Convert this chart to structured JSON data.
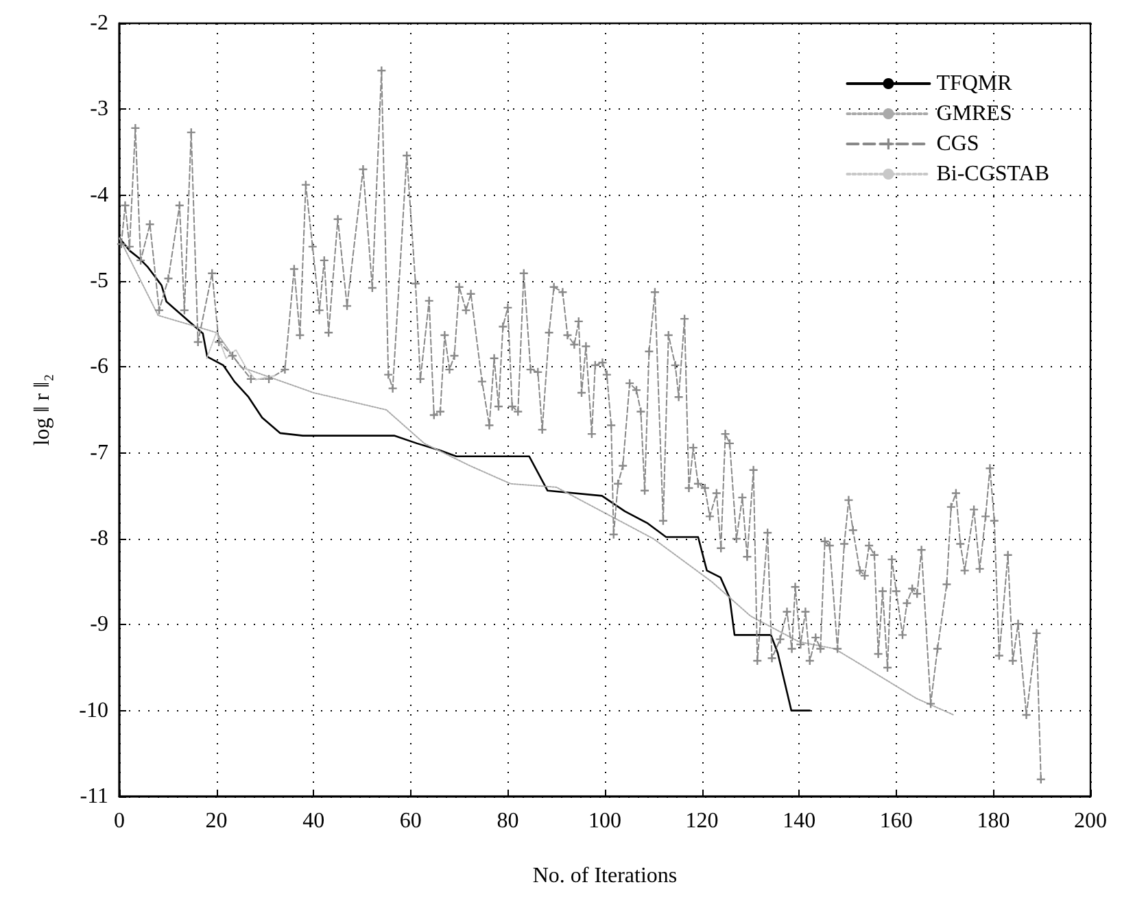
{
  "chart_data": {
    "type": "line",
    "xlabel": "No. of Iterations",
    "ylabel": "log ‖ r ‖₂",
    "xlim": [
      0,
      200
    ],
    "xticks": [
      0,
      20,
      40,
      60,
      80,
      100,
      120,
      140,
      160,
      180,
      200
    ],
    "ylim": [
      -11,
      -2
    ],
    "yticks": [
      -11,
      -10,
      -9,
      -8,
      -7,
      -6,
      -5,
      -4,
      -3,
      -2
    ],
    "grid": true,
    "legend": "top right",
    "series": [
      {
        "name": "TFQMR",
        "color": "#000000",
        "line_style": "solid",
        "marker": "none",
        "x": [
          0,
          2.2,
          4,
          5.9,
          8.7,
          9.7,
          17.2,
          18.1,
          21.4,
          23.7,
          26.6,
          29.4,
          33.1,
          37.8,
          56.6,
          61.3,
          66,
          69.4,
          84.4,
          88.2,
          99.4,
          104.1,
          108.8,
          112.6,
          119.2,
          121,
          123.8,
          125.7,
          126.7,
          134.2,
          135.6,
          138.4,
          142.2
        ],
        "values": [
          -4.5,
          -4.65,
          -4.73,
          -4.84,
          -5.05,
          -5.24,
          -5.61,
          -5.88,
          -5.98,
          -6.17,
          -6.35,
          -6.59,
          -6.77,
          -6.8,
          -6.8,
          -6.89,
          -6.97,
          -7.04,
          -7.04,
          -7.44,
          -7.5,
          -7.68,
          -7.82,
          -7.98,
          -7.98,
          -8.37,
          -8.45,
          -8.69,
          -9.12,
          -9.12,
          -9.33,
          -10,
          -10
        ]
      },
      {
        "name": "GMRES",
        "color": "#aaaaaa",
        "line_style": "dotted",
        "marker": "none",
        "x": [
          0,
          8,
          20,
          25,
          40,
          55,
          62.8,
          72.2,
          80.6,
          90,
          100,
          110,
          122,
          130,
          140,
          147.3,
          152,
          164.2,
          171.8
        ],
        "values": [
          -4.5,
          -5.4,
          -5.6,
          -6.0,
          -6.3,
          -6.5,
          -6.89,
          -7.15,
          -7.36,
          -7.4,
          -7.7,
          -8.0,
          -8.5,
          -8.9,
          -9.2,
          -9.28,
          -9.44,
          -9.86,
          -10.05
        ]
      },
      {
        "name": "CGS",
        "color": "#888888",
        "line_style": "dashed",
        "marker": "cross",
        "x": [
          0.4,
          1.2,
          2.1,
          3.3,
          4.4,
          6.3,
          8.2,
          10.1,
          12.4,
          13.4,
          14.8,
          16.2,
          19.1,
          20.5,
          23.3,
          27.1,
          30.8,
          34.1,
          36,
          37.2,
          38.4,
          39.8,
          41.2,
          42.2,
          43.1,
          45,
          46.9,
          50.2,
          52.1,
          54,
          55.4,
          56.3,
          59.2,
          61,
          62,
          63.8,
          64.8,
          66.1,
          67,
          68,
          69,
          70,
          71.4,
          72.4,
          74.7,
          76.2,
          77.2,
          78.1,
          79,
          80,
          80.9,
          82.1,
          83.3,
          84.7,
          86.2,
          87.1,
          88.5,
          89.5,
          91.3,
          92.3,
          93.7,
          94.6,
          95.2,
          96.1,
          97.3,
          98,
          99.5,
          100.4,
          101.3,
          101.8,
          102.7,
          103.7,
          105.1,
          106.5,
          107.4,
          108.2,
          109.1,
          110.3,
          112,
          113.1,
          114.5,
          115.2,
          116.4,
          117.3,
          118.2,
          119.2,
          120.6,
          121.6,
          123,
          123.9,
          124.8,
          125.7,
          127.1,
          128.3,
          129.3,
          130.6,
          131.4,
          133.5,
          134.4,
          136.1,
          137.5,
          138.5,
          139.2,
          140.3,
          141.3,
          142.2,
          143.4,
          144.4,
          145.3,
          146.3,
          147.9,
          149.3,
          150.2,
          151.1,
          152.5,
          153.5,
          154.4,
          155.5,
          156.3,
          157.2,
          158.2,
          159.1,
          160,
          161.3,
          162.2,
          163.3,
          164.3,
          165.2,
          167.1,
          168.5,
          170.4,
          171.3,
          172.3,
          173.2,
          174.1,
          176,
          177.2,
          178.4,
          179.3,
          180.2,
          181.2,
          183,
          184,
          185.1,
          186.8,
          188.9,
          189.8
        ],
        "values": [
          -4.57,
          -4.12,
          -4.6,
          -3.22,
          -4.76,
          -4.34,
          -5.34,
          -4.97,
          -4.12,
          -5.34,
          -3.27,
          -5.71,
          -4.91,
          -5.71,
          -5.87,
          -6.14,
          -6.14,
          -6.03,
          -4.86,
          -5.63,
          -3.88,
          -4.6,
          -5.34,
          -4.76,
          -5.6,
          -4.28,
          -5.29,
          -3.7,
          -5.08,
          -2.55,
          -6.09,
          -6.25,
          -3.54,
          -5.03,
          -6.14,
          -5.23,
          -6.56,
          -6.52,
          -5.63,
          -6.03,
          -5.87,
          -5.07,
          -5.34,
          -5.15,
          -6.17,
          -6.68,
          -5.9,
          -6.46,
          -5.53,
          -5.31,
          -6.46,
          -6.52,
          -4.91,
          -6.03,
          -6.06,
          -6.73,
          -5.6,
          -5.07,
          -5.13,
          -5.63,
          -5.74,
          -5.47,
          -6.3,
          -5.76,
          -6.78,
          -5.98,
          -5.95,
          -6.09,
          -6.68,
          -7.95,
          -7.36,
          -7.15,
          -6.19,
          -6.27,
          -6.52,
          -7.44,
          -5.82,
          -5.13,
          -7.79,
          -5.63,
          -5.98,
          -6.35,
          -5.44,
          -7.41,
          -6.94,
          -7.36,
          -7.41,
          -7.74,
          -7.47,
          -8.11,
          -6.78,
          -6.89,
          -8.0,
          -7.52,
          -8.21,
          -7.2,
          -9.42,
          -7.93,
          -9.39,
          -9.17,
          -8.85,
          -9.28,
          -8.56,
          -9.23,
          -8.85,
          -9.42,
          -9.15,
          -9.28,
          -8.03,
          -8.08,
          -9.28,
          -8.06,
          -7.55,
          -7.9,
          -8.37,
          -8.43,
          -8.08,
          -8.19,
          -9.34,
          -8.61,
          -9.5,
          -8.24,
          -8.61,
          -9.12,
          -8.75,
          -8.58,
          -8.64,
          -8.13,
          -9.92,
          -9.28,
          -8.53,
          -7.63,
          -7.47,
          -8.06,
          -8.37,
          -7.66,
          -8.35,
          -7.74,
          -7.18,
          -7.79,
          -9.36,
          -8.19,
          -9.42,
          -8.99,
          -10.05,
          -9.1,
          -10.8
        ]
      },
      {
        "name": "Bi-CGSTAB",
        "color": "#c8c8c8",
        "line_style": "dotted",
        "marker": "none",
        "x": [
          18,
          20,
          22,
          24,
          26,
          28,
          32
        ],
        "values": [
          -5.9,
          -5.6,
          -5.9,
          -5.8,
          -6.0,
          -6.15,
          -6.1
        ]
      }
    ]
  }
}
